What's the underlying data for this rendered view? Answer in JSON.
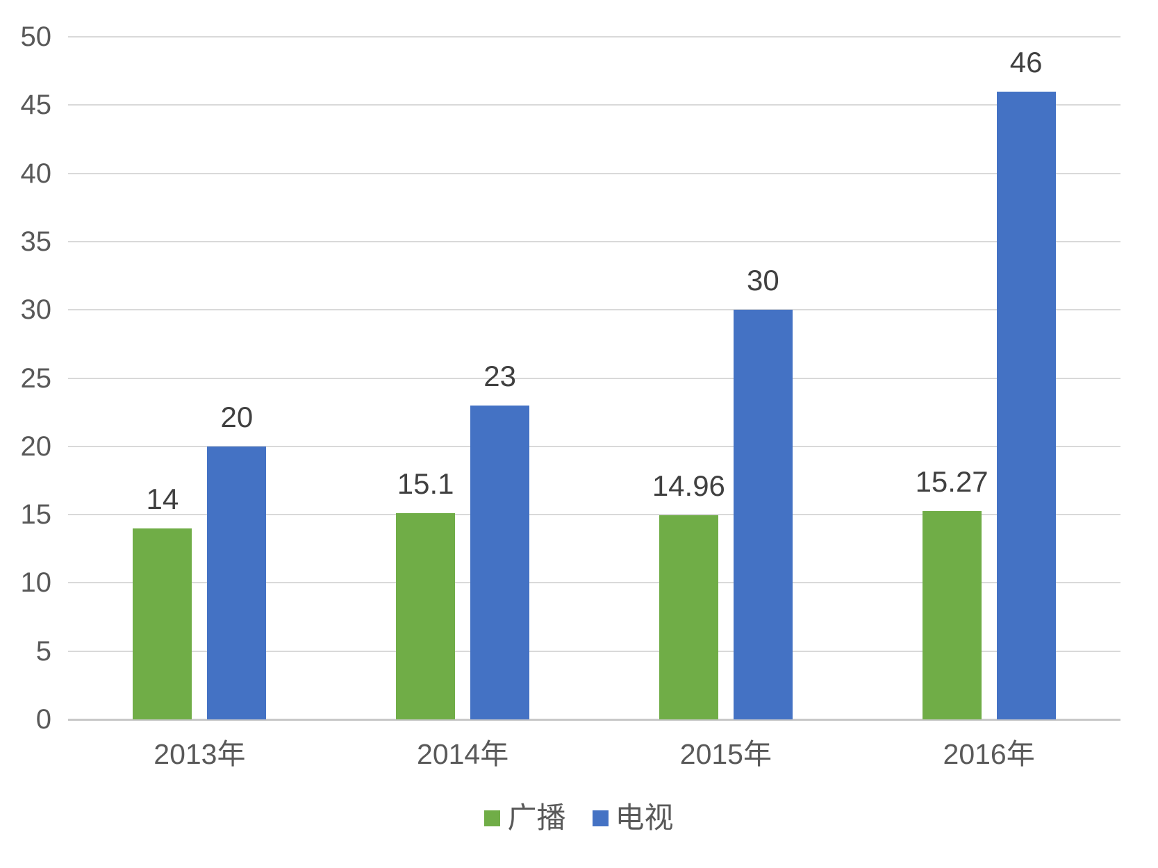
{
  "chart_data": {
    "type": "bar",
    "categories": [
      "2013年",
      "2014年",
      "2015年",
      "2016年"
    ],
    "series": [
      {
        "name": "广播",
        "color": "#70AD47",
        "values": [
          14,
          15.1,
          14.96,
          15.27
        ]
      },
      {
        "name": "电视",
        "color": "#4472C4",
        "values": [
          20,
          23,
          30,
          46
        ]
      }
    ],
    "data_labels": [
      [
        "14",
        "15.1",
        "14.96",
        "15.27"
      ],
      [
        "20",
        "23",
        "30",
        "46"
      ]
    ],
    "title": "",
    "xlabel": "",
    "ylabel": "",
    "ylim": [
      0,
      50
    ],
    "y_ticks": [
      "0",
      "5",
      "10",
      "15",
      "20",
      "25",
      "30",
      "35",
      "40",
      "45",
      "50"
    ],
    "grid": true,
    "legend_position": "bottom"
  },
  "colors": {
    "background": "#FFFFFF",
    "grid": "#D9D9D9",
    "axis_line": "#C8C8C8",
    "tick_text": "#595959",
    "label_text": "#404040",
    "series_green": "#70AD47",
    "series_blue": "#4472C4"
  }
}
